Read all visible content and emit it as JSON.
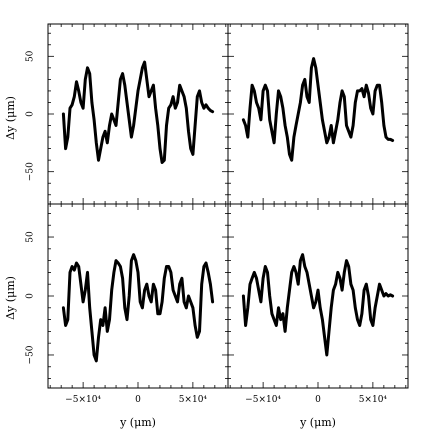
{
  "chart_data": {
    "type": "line",
    "layout": "2x2 grid, shared axes",
    "xlabel": "y  (μm)",
    "ylabel": "Δy  (μm)",
    "xlim": [
      -82000,
      82000
    ],
    "ylim": [
      -78,
      78
    ],
    "xticks": [
      -50000,
      0,
      50000
    ],
    "xtick_labels": [
      "−5×10⁴",
      "0",
      "5×10⁴"
    ],
    "yticks": [
      -50,
      0,
      50
    ],
    "ytick_labels": [
      "−50",
      "0",
      "50"
    ],
    "grid": false,
    "legend": "none",
    "line_color": "#000000",
    "panels": [
      {
        "position": "top-left",
        "x": [
          -68000,
          -66000,
          -64000,
          -62000,
          -60000,
          -58000,
          -56000,
          -54000,
          -52000,
          -50000,
          -48000,
          -46000,
          -44000,
          -42000,
          -40000,
          -38000,
          -36000,
          -34000,
          -32000,
          -30000,
          -28000,
          -26000,
          -24000,
          -22000,
          -20000,
          -18000,
          -16000,
          -14000,
          -12000,
          -10000,
          -8000,
          -6000,
          -4000,
          -2000,
          0,
          2000,
          4000,
          6000,
          8000,
          10000,
          12000,
          14000,
          16000,
          18000,
          20000,
          22000,
          24000,
          26000,
          28000,
          30000,
          32000,
          34000,
          36000,
          38000,
          40000,
          42000,
          44000,
          46000,
          48000,
          50000,
          52000,
          54000,
          56000,
          58000,
          60000,
          62000,
          64000,
          66000,
          68000
        ],
        "y": [
          0,
          -30,
          -20,
          5,
          8,
          15,
          28,
          20,
          10,
          5,
          30,
          40,
          35,
          10,
          -5,
          -25,
          -40,
          -30,
          -20,
          -15,
          -25,
          -10,
          0,
          -5,
          -10,
          10,
          30,
          35,
          25,
          10,
          -5,
          -20,
          -10,
          5,
          20,
          30,
          40,
          45,
          30,
          15,
          20,
          25,
          5,
          -10,
          -30,
          -42,
          -40,
          -10,
          5,
          8,
          15,
          5,
          10,
          25,
          20,
          15,
          5,
          -15,
          -30,
          -35,
          -10,
          15,
          20,
          10,
          5,
          8,
          5,
          3,
          2
        ]
      },
      {
        "position": "top-right",
        "x": [
          -68000,
          -66000,
          -64000,
          -62000,
          -60000,
          -58000,
          -56000,
          -54000,
          -52000,
          -50000,
          -48000,
          -46000,
          -44000,
          -42000,
          -40000,
          -38000,
          -36000,
          -34000,
          -32000,
          -30000,
          -28000,
          -26000,
          -24000,
          -22000,
          -20000,
          -18000,
          -16000,
          -14000,
          -12000,
          -10000,
          -8000,
          -6000,
          -4000,
          -2000,
          0,
          2000,
          4000,
          6000,
          8000,
          10000,
          12000,
          14000,
          16000,
          18000,
          20000,
          22000,
          24000,
          26000,
          28000,
          30000,
          32000,
          34000,
          36000,
          38000,
          40000,
          42000,
          44000,
          46000,
          48000,
          50000,
          52000,
          54000,
          56000,
          58000,
          60000,
          62000,
          64000,
          66000,
          68000
        ],
        "y": [
          -5,
          -10,
          -20,
          5,
          25,
          20,
          10,
          5,
          -5,
          20,
          25,
          20,
          -5,
          -15,
          -25,
          0,
          20,
          15,
          5,
          -10,
          -20,
          -35,
          -40,
          -20,
          -10,
          0,
          10,
          25,
          30,
          15,
          10,
          40,
          48,
          40,
          25,
          10,
          -5,
          -15,
          -25,
          -20,
          -10,
          -25,
          -15,
          -5,
          10,
          20,
          15,
          -10,
          -15,
          -20,
          -10,
          10,
          20,
          20,
          22,
          15,
          25,
          18,
          5,
          0,
          20,
          25,
          25,
          10,
          -10,
          -20,
          -22,
          -22,
          -23
        ]
      },
      {
        "position": "bottom-left",
        "x": [
          -68000,
          -66000,
          -64000,
          -62000,
          -60000,
          -58000,
          -56000,
          -54000,
          -52000,
          -50000,
          -48000,
          -46000,
          -44000,
          -42000,
          -40000,
          -38000,
          -36000,
          -34000,
          -32000,
          -30000,
          -28000,
          -26000,
          -24000,
          -22000,
          -20000,
          -18000,
          -16000,
          -14000,
          -12000,
          -10000,
          -8000,
          -6000,
          -4000,
          -2000,
          0,
          2000,
          4000,
          6000,
          8000,
          10000,
          12000,
          14000,
          16000,
          18000,
          20000,
          22000,
          24000,
          26000,
          28000,
          30000,
          32000,
          34000,
          36000,
          38000,
          40000,
          42000,
          44000,
          46000,
          48000,
          50000,
          52000,
          54000,
          56000,
          58000,
          60000,
          62000,
          64000,
          66000,
          68000
        ],
        "y": [
          -10,
          -25,
          -20,
          20,
          25,
          22,
          28,
          25,
          10,
          -5,
          5,
          20,
          -10,
          -30,
          -50,
          -55,
          -35,
          -20,
          -25,
          -10,
          -30,
          -20,
          5,
          20,
          30,
          28,
          25,
          15,
          -10,
          -20,
          0,
          30,
          35,
          30,
          20,
          -5,
          -10,
          5,
          10,
          0,
          -5,
          10,
          5,
          -15,
          -15,
          -5,
          15,
          25,
          25,
          20,
          5,
          0,
          -5,
          10,
          15,
          -5,
          -10,
          0,
          -5,
          -10,
          -25,
          -35,
          -30,
          10,
          25,
          28,
          20,
          10,
          -5
        ]
      },
      {
        "position": "bottom-right",
        "x": [
          -68000,
          -66000,
          -64000,
          -62000,
          -60000,
          -58000,
          -56000,
          -54000,
          -52000,
          -50000,
          -48000,
          -46000,
          -44000,
          -42000,
          -40000,
          -38000,
          -36000,
          -34000,
          -32000,
          -30000,
          -28000,
          -26000,
          -24000,
          -22000,
          -20000,
          -18000,
          -16000,
          -14000,
          -12000,
          -10000,
          -8000,
          -6000,
          -4000,
          -2000,
          0,
          2000,
          4000,
          6000,
          8000,
          10000,
          12000,
          14000,
          16000,
          18000,
          20000,
          22000,
          24000,
          26000,
          28000,
          30000,
          32000,
          34000,
          36000,
          38000,
          40000,
          42000,
          44000,
          46000,
          48000,
          50000,
          52000,
          54000,
          56000,
          58000,
          60000,
          62000,
          64000,
          66000,
          68000
        ],
        "y": [
          0,
          -25,
          -10,
          10,
          15,
          20,
          15,
          5,
          -5,
          15,
          25,
          20,
          0,
          -15,
          -20,
          -25,
          -10,
          -20,
          -15,
          -30,
          -10,
          5,
          20,
          25,
          20,
          10,
          30,
          35,
          25,
          20,
          10,
          0,
          -10,
          -5,
          5,
          -10,
          -20,
          -35,
          -50,
          -30,
          -10,
          5,
          10,
          20,
          15,
          5,
          20,
          30,
          25,
          10,
          5,
          -10,
          -20,
          -25,
          -15,
          5,
          10,
          0,
          -20,
          -25,
          -10,
          0,
          10,
          5,
          0,
          2,
          0,
          1,
          0
        ]
      }
    ]
  }
}
